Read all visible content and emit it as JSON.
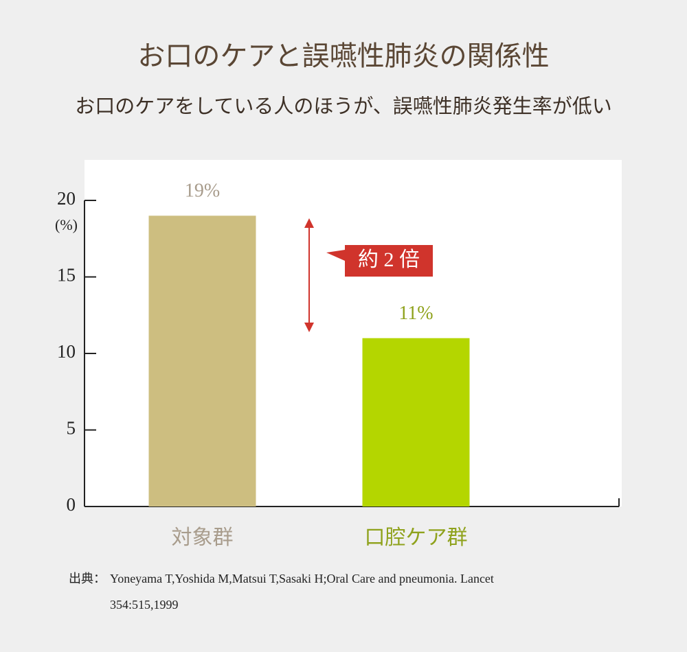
{
  "chart_data": {
    "type": "bar",
    "title": "お口のケアと誤嚥性肺炎の関係性",
    "subtitle": "お口のケアをしている人のほうが、誤嚥性肺炎発生率が低い",
    "y_unit": "(%)",
    "categories": [
      "対象群",
      "口腔ケア群"
    ],
    "values": [
      19,
      11
    ],
    "value_labels": [
      "19%",
      "11%"
    ],
    "colors": [
      "#cdbe80",
      "#b4d600"
    ],
    "label_colors": [
      "#a89c8c",
      "#8fa21c"
    ],
    "ylim": [
      0,
      20
    ],
    "yticks": [
      0,
      5,
      10,
      15,
      20
    ],
    "annotation": "約 2 倍",
    "source_label": "出典：",
    "source": [
      "Yoneyama T,Yoshida M,Matsui T,Sasaki H;Oral Care and pneumonia. Lancet",
      "354:515,1999"
    ]
  }
}
